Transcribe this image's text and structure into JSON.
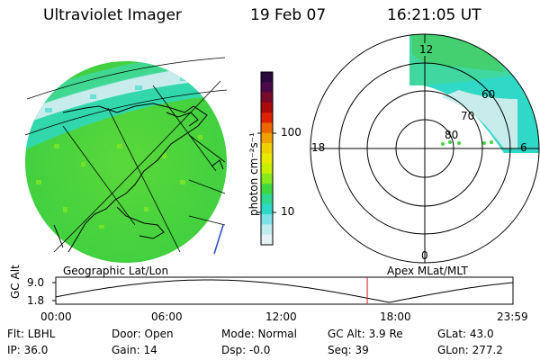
{
  "header": {
    "instrument": "Ultraviolet Imager",
    "date": "19 Feb 07",
    "time": "16:21:05 UT"
  },
  "colorbar": {
    "unit_label": "photon cm⁻²s⁻¹",
    "ticks": [
      "100",
      "10"
    ],
    "stops": [
      "#2a0a3a",
      "#4a0a4a",
      "#7a0a2a",
      "#aa0a0a",
      "#dd2200",
      "#ee6600",
      "#f0a000",
      "#f0d000",
      "#e8e800",
      "#c8ee00",
      "#88e820",
      "#40d840",
      "#30d890",
      "#30d8c8",
      "#80e0e8",
      "#c0ecf0",
      "#e6f2f4"
    ]
  },
  "left_panel": {
    "caption": "Geographic Lat/Lon"
  },
  "right_panel": {
    "caption": "Apex MLat/MLT",
    "mlt_labels": {
      "top": "12",
      "left": "18",
      "right": "6",
      "bottom": "0"
    },
    "lat_labels": [
      "60",
      "70",
      "80"
    ]
  },
  "altitude_plot": {
    "ylabel": "GC Alt",
    "yticks": [
      "9.0",
      "1.8"
    ],
    "xticks": [
      "00:00",
      "06:00",
      "12:00",
      "18:00",
      "23:59"
    ],
    "current_time_hours": 16.35
  },
  "info": {
    "row1": {
      "flt": "Flt: LBHL",
      "door": "Door: Open",
      "mode": "Mode: Normal",
      "gcalt": "GC Alt: 3.9 Re",
      "glat": "GLat:  43.0"
    },
    "row2": {
      "ip": "IP: 36.0",
      "gain": "Gain: 14",
      "dsp": "Dsp:   -0.0",
      "seq": "Seq: 39",
      "glon": "GLon: 277.2"
    }
  }
}
